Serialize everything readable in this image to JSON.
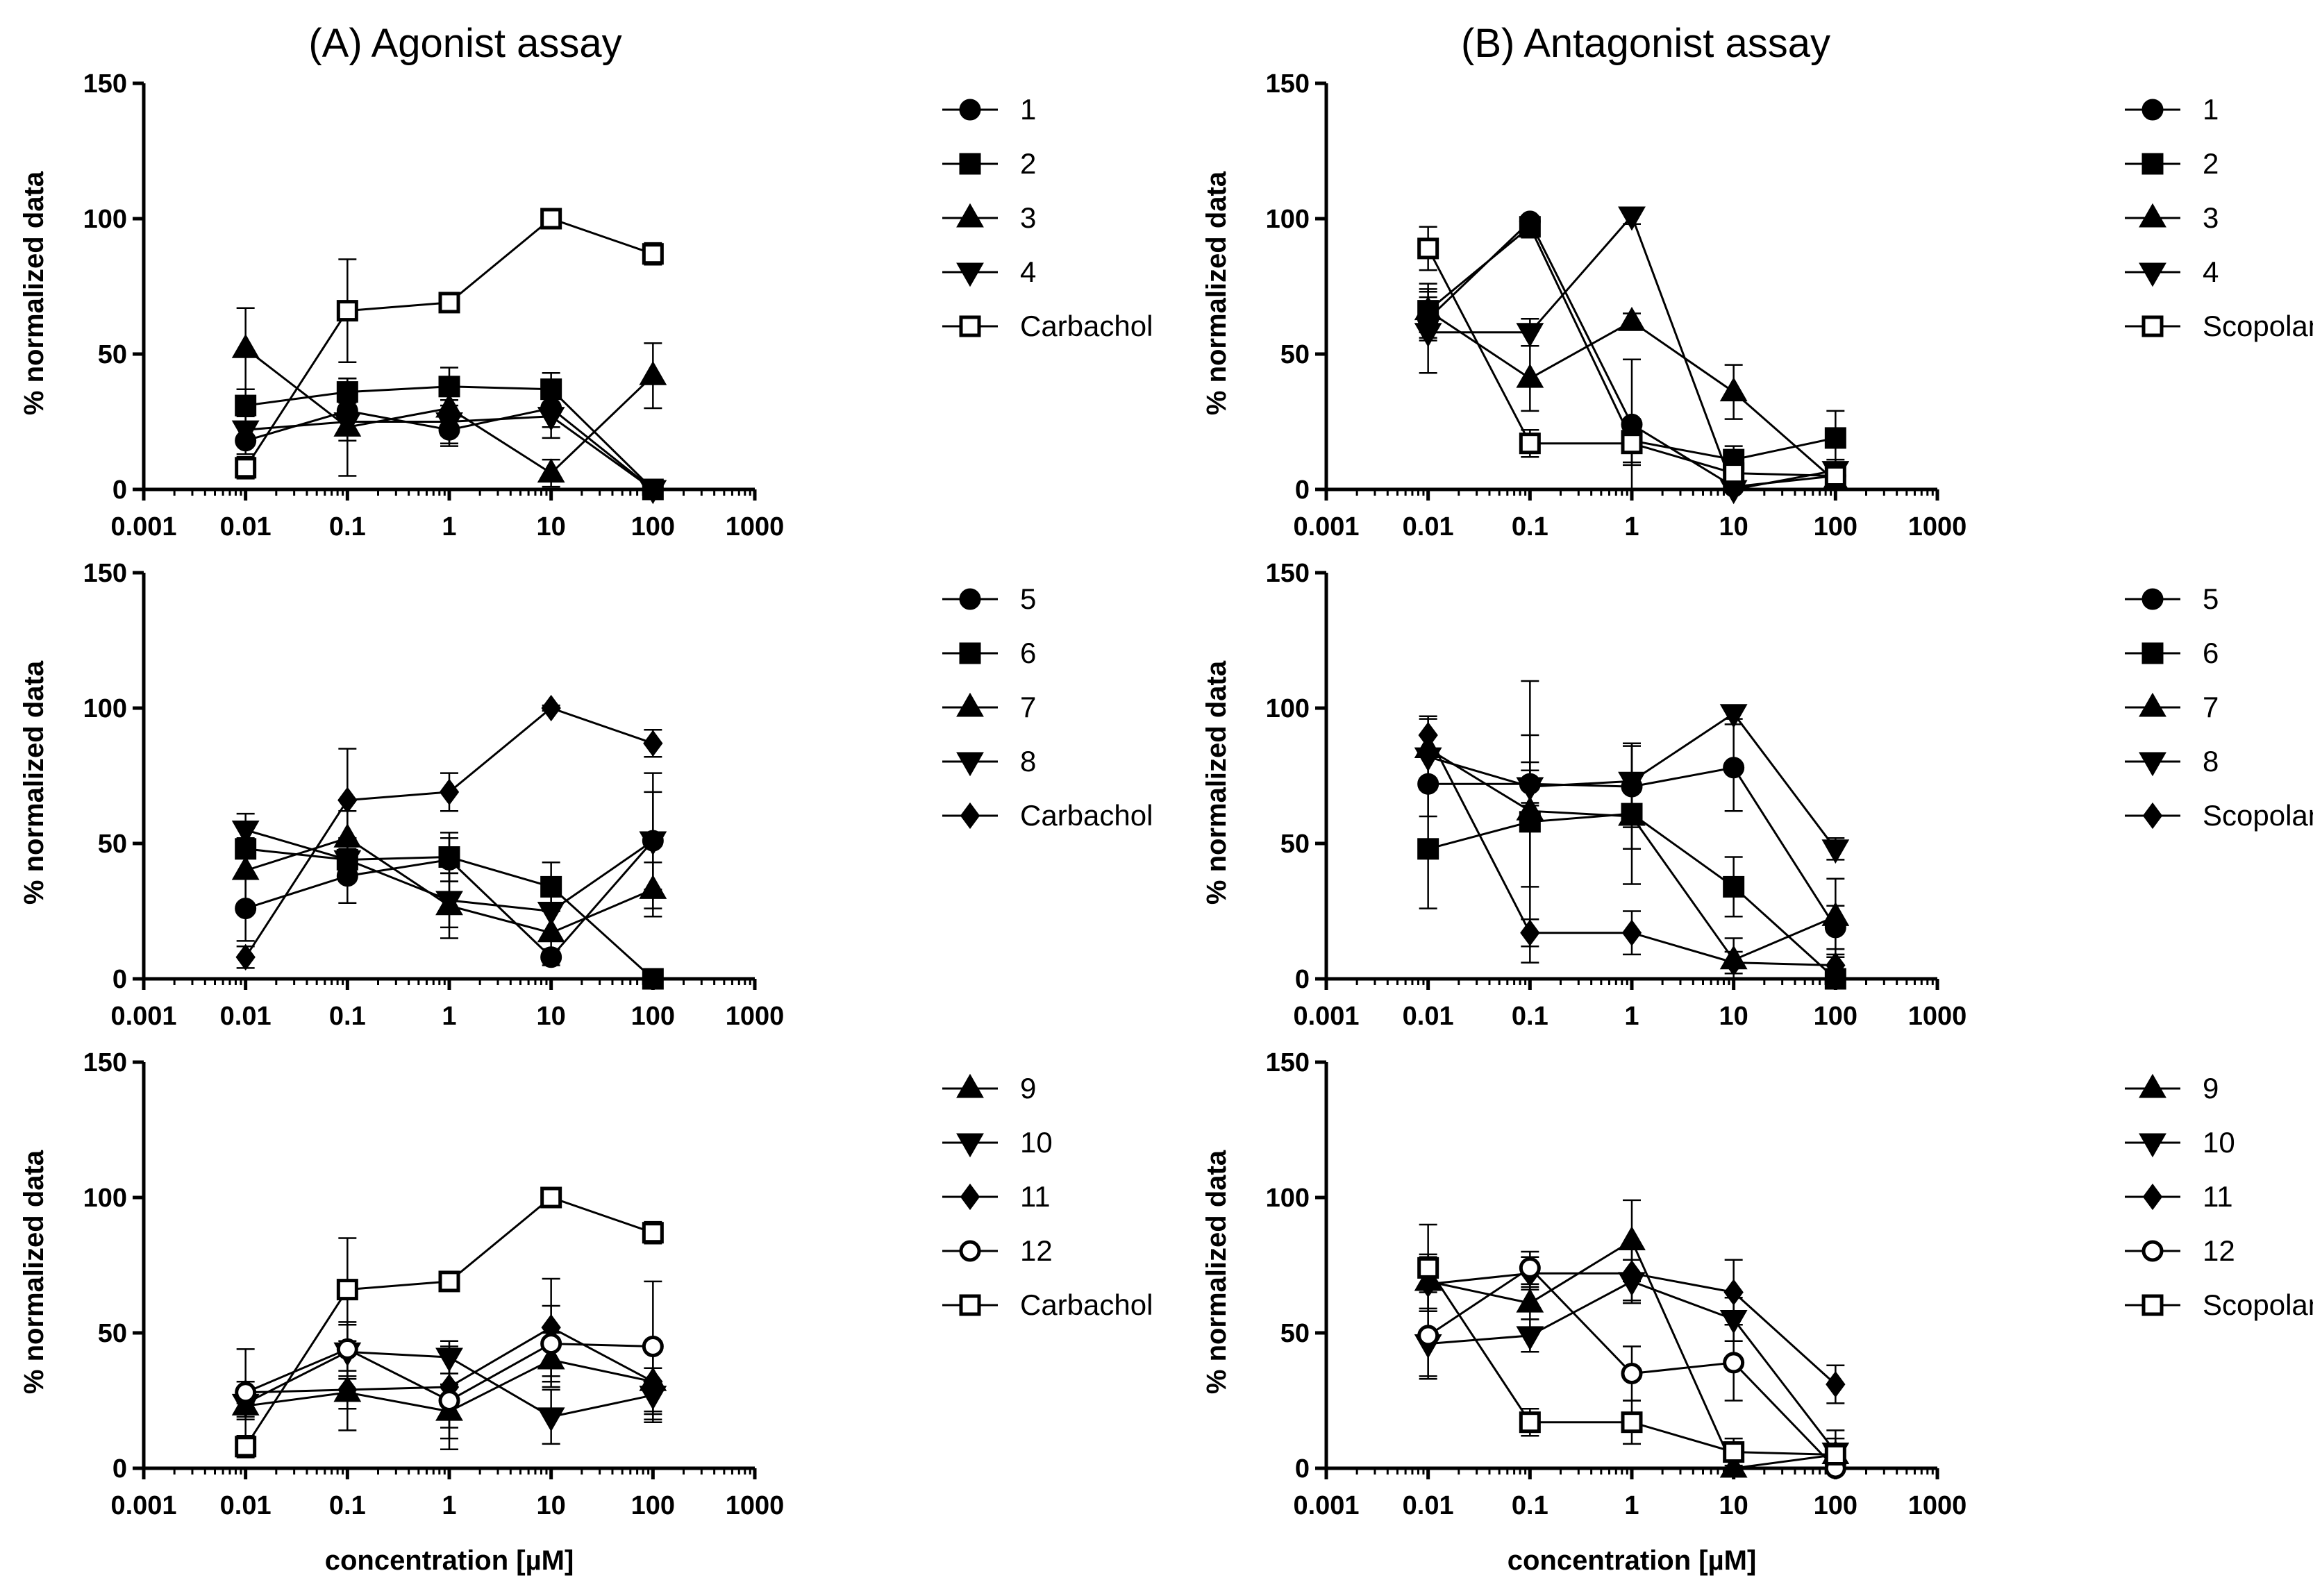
{
  "figure": {
    "column_titles": [
      "(A) Agonist assay",
      "(B) Antagonist assay"
    ],
    "ylabel": "% normalized data",
    "xlabel": "concentration [µM]"
  },
  "chart_data": [
    {
      "type": "line",
      "panel": "A-top",
      "column": "(A) Agonist assay",
      "x_scale": "log",
      "xlim": [
        0.001,
        1000
      ],
      "ylim": [
        0,
        150
      ],
      "x_ticks": [
        "0.001",
        "0.01",
        "0.1",
        "1",
        "10",
        "100",
        "1000"
      ],
      "y_ticks": [
        "0",
        "50",
        "100",
        "150"
      ],
      "ylabel": "% normalized data",
      "xlabel": "",
      "x": [
        0.01,
        0.1,
        1,
        10,
        100
      ],
      "series": [
        {
          "name": "1",
          "marker": "circle-filled",
          "values": [
            18,
            29,
            22,
            30,
            0
          ],
          "errors": [
            5,
            8,
            6,
            7,
            0
          ]
        },
        {
          "name": "2",
          "marker": "square-filled",
          "values": [
            31,
            36,
            38,
            37,
            0
          ],
          "errors": [
            6,
            5,
            7,
            6,
            0
          ]
        },
        {
          "name": "3",
          "marker": "triangle-up-filled",
          "values": [
            52,
            23,
            30,
            6,
            42
          ],
          "errors": [
            15,
            18,
            10,
            5,
            12
          ]
        },
        {
          "name": "4",
          "marker": "triangle-down-filled",
          "values": [
            22,
            25,
            25,
            27,
            0
          ],
          "errors": [
            5,
            7,
            8,
            8,
            0
          ]
        },
        {
          "name": "Carbachol",
          "marker": "square-open",
          "values": [
            8,
            66,
            69,
            100,
            87
          ],
          "errors": [
            4,
            19,
            2,
            2,
            4
          ]
        }
      ]
    },
    {
      "type": "line",
      "panel": "A-middle",
      "column": "(A) Agonist assay",
      "x_scale": "log",
      "xlim": [
        0.001,
        1000
      ],
      "ylim": [
        0,
        150
      ],
      "x_ticks": [
        "0.001",
        "0.01",
        "0.1",
        "1",
        "10",
        "100",
        "1000"
      ],
      "y_ticks": [
        "0",
        "50",
        "100",
        "150"
      ],
      "ylabel": "% normalized data",
      "xlabel": "",
      "x": [
        0.01,
        0.1,
        1,
        10,
        100
      ],
      "series": [
        {
          "name": "5",
          "marker": "circle-filled",
          "values": [
            26,
            38,
            44,
            8,
            51
          ],
          "errors": [
            12,
            10,
            8,
            3,
            18
          ]
        },
        {
          "name": "6",
          "marker": "square-filled",
          "values": [
            48,
            44,
            45,
            34,
            0
          ],
          "errors": [
            10,
            8,
            9,
            9,
            0
          ]
        },
        {
          "name": "7",
          "marker": "triangle-up-filled",
          "values": [
            40,
            52,
            27,
            17,
            33
          ],
          "errors": [
            12,
            10,
            12,
            8,
            10
          ]
        },
        {
          "name": "8",
          "marker": "triangle-down-filled",
          "values": [
            55,
            44,
            29,
            25,
            51
          ],
          "errors": [
            6,
            8,
            10,
            10,
            25
          ]
        },
        {
          "name": "Carbachol",
          "marker": "diamond-filled",
          "values": [
            8,
            66,
            69,
            100,
            87
          ],
          "errors": [
            4,
            19,
            7,
            1,
            5
          ]
        }
      ]
    },
    {
      "type": "line",
      "panel": "A-bottom",
      "column": "(A) Agonist assay",
      "x_scale": "log",
      "xlim": [
        0.001,
        1000
      ],
      "ylim": [
        0,
        150
      ],
      "x_ticks": [
        "0.001",
        "0.01",
        "0.1",
        "1",
        "10",
        "100",
        "1000"
      ],
      "y_ticks": [
        "0",
        "50",
        "100",
        "150"
      ],
      "ylabel": "% normalized data",
      "xlabel": "concentration [µM]",
      "x": [
        0.01,
        0.1,
        1,
        10,
        100
      ],
      "series": [
        {
          "name": "9",
          "marker": "triangle-up-filled",
          "values": [
            23,
            28,
            21,
            40,
            32
          ],
          "errors": [
            5,
            14,
            10,
            10,
            12
          ]
        },
        {
          "name": "10",
          "marker": "triangle-down-filled",
          "values": [
            24,
            43,
            41,
            19,
            27
          ],
          "errors": [
            5,
            10,
            6,
            10,
            10
          ]
        },
        {
          "name": "11",
          "marker": "diamond-filled",
          "values": [
            28,
            29,
            30,
            52,
            32
          ],
          "errors": [
            4,
            7,
            15,
            18,
            14
          ]
        },
        {
          "name": "12",
          "marker": "circle-open",
          "values": [
            28,
            44,
            25,
            46,
            45
          ],
          "errors": [
            16,
            10,
            18,
            14,
            24
          ]
        },
        {
          "name": "Carbachol",
          "marker": "square-open",
          "values": [
            8,
            66,
            69,
            100,
            87
          ],
          "errors": [
            4,
            19,
            2,
            2,
            4
          ]
        }
      ]
    },
    {
      "type": "line",
      "panel": "B-top",
      "column": "(B) Antagonist assay",
      "x_scale": "log",
      "xlim": [
        0.001,
        1000
      ],
      "ylim": [
        0,
        150
      ],
      "x_ticks": [
        "0.001",
        "0.01",
        "0.1",
        "1",
        "10",
        "100",
        "1000"
      ],
      "y_ticks": [
        "0",
        "50",
        "100",
        "150"
      ],
      "ylabel": "% normalized data",
      "xlabel": "",
      "x": [
        0.01,
        0.1,
        1,
        10,
        100
      ],
      "series": [
        {
          "name": "1",
          "marker": "circle-filled",
          "values": [
            63,
            99,
            24,
            1,
            5
          ],
          "errors": [
            8,
            2,
            24,
            4,
            4
          ]
        },
        {
          "name": "2",
          "marker": "square-filled",
          "values": [
            66,
            97,
            18,
            11,
            19
          ],
          "errors": [
            8,
            4,
            8,
            5,
            10
          ]
        },
        {
          "name": "3",
          "marker": "triangle-up-filled",
          "values": [
            66,
            41,
            62,
            36,
            3
          ],
          "errors": [
            10,
            12,
            3,
            10,
            3
          ]
        },
        {
          "name": "4",
          "marker": "triangle-down-filled",
          "values": [
            58,
            58,
            101,
            0,
            7
          ],
          "errors": [
            15,
            5,
            3,
            3,
            4
          ]
        },
        {
          "name": "Scopolamine",
          "marker": "square-open",
          "values": [
            89,
            17,
            17,
            6,
            5
          ],
          "errors": [
            8,
            5,
            8,
            5,
            3
          ]
        }
      ]
    },
    {
      "type": "line",
      "panel": "B-middle",
      "column": "(B) Antagonist assay",
      "x_scale": "log",
      "xlim": [
        0.001,
        1000
      ],
      "ylim": [
        0,
        150
      ],
      "x_ticks": [
        "0.001",
        "0.01",
        "0.1",
        "1",
        "10",
        "100",
        "1000"
      ],
      "y_ticks": [
        "0",
        "50",
        "100",
        "150"
      ],
      "ylabel": "% normalized data",
      "xlabel": "",
      "x": [
        0.01,
        0.1,
        1,
        10,
        100
      ],
      "series": [
        {
          "name": "5",
          "marker": "circle-filled",
          "values": [
            72,
            72,
            71,
            78,
            19
          ],
          "errors": [
            12,
            8,
            15,
            16,
            8
          ]
        },
        {
          "name": "6",
          "marker": "square-filled",
          "values": [
            48,
            58,
            61,
            34,
            0
          ],
          "errors": [
            22,
            52,
            26,
            11,
            3
          ]
        },
        {
          "name": "7",
          "marker": "triangle-up-filled",
          "values": [
            85,
            62,
            60,
            7,
            23
          ],
          "errors": [
            12,
            28,
            12,
            8,
            14
          ]
        },
        {
          "name": "8",
          "marker": "triangle-down-filled",
          "values": [
            82,
            71,
            73,
            98,
            48
          ],
          "errors": [
            8,
            6,
            14,
            2,
            4
          ]
        },
        {
          "name": "Scopolamine",
          "marker": "diamond-filled",
          "values": [
            90,
            17,
            17,
            6,
            5
          ],
          "errors": [
            6,
            5,
            8,
            4,
            3
          ]
        }
      ]
    },
    {
      "type": "line",
      "panel": "B-bottom",
      "column": "(B) Antagonist assay",
      "x_scale": "log",
      "xlim": [
        0.001,
        1000
      ],
      "ylim": [
        0,
        150
      ],
      "x_ticks": [
        "0.001",
        "0.01",
        "0.1",
        "1",
        "10",
        "100",
        "1000"
      ],
      "y_ticks": [
        "0",
        "50",
        "100",
        "150"
      ],
      "ylabel": "% normalized data",
      "xlabel": "concentration [µM]",
      "x": [
        0.01,
        0.1,
        1,
        10,
        100
      ],
      "series": [
        {
          "name": "9",
          "marker": "triangle-up-filled",
          "values": [
            69,
            61,
            84,
            0,
            5
          ],
          "errors": [
            10,
            6,
            15,
            5,
            6
          ]
        },
        {
          "name": "10",
          "marker": "triangle-down-filled",
          "values": [
            46,
            49,
            69,
            55,
            6
          ],
          "errors": [
            12,
            6,
            8,
            8,
            8
          ]
        },
        {
          "name": "11",
          "marker": "diamond-filled",
          "values": [
            68,
            72,
            72,
            65,
            31
          ],
          "errors": [
            10,
            6,
            10,
            12,
            7
          ]
        },
        {
          "name": "12",
          "marker": "circle-open",
          "values": [
            49,
            74,
            35,
            39,
            0
          ],
          "errors": [
            16,
            6,
            10,
            14,
            8
          ]
        },
        {
          "name": "Scopolamine",
          "marker": "square-open",
          "values": [
            74,
            17,
            17,
            6,
            5
          ],
          "errors": [
            16,
            5,
            8,
            5,
            3
          ]
        }
      ]
    }
  ]
}
